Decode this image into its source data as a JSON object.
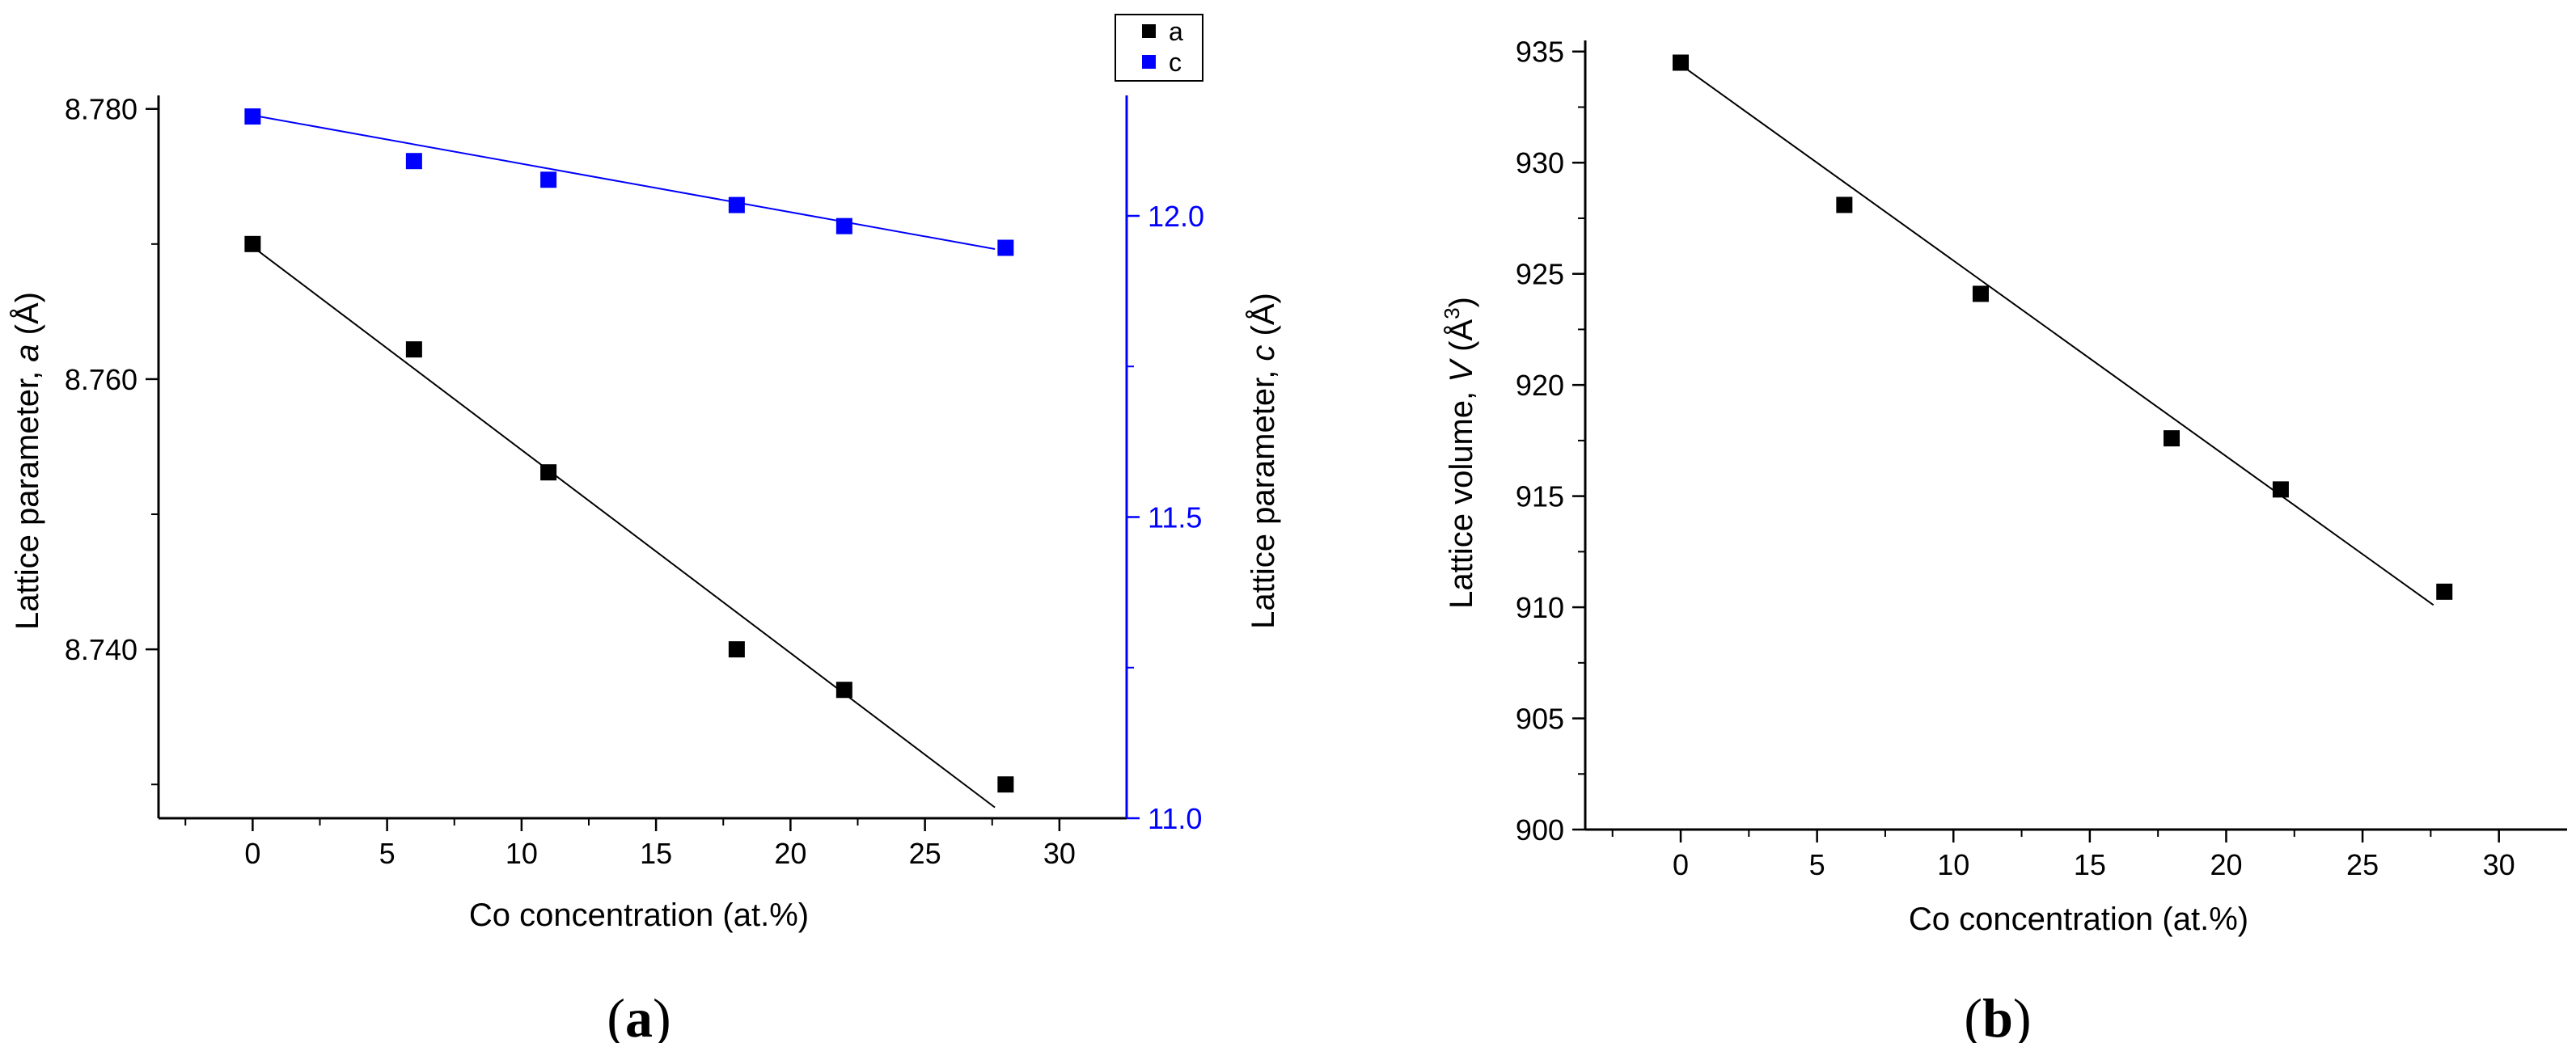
{
  "colors": {
    "black": "#000000",
    "blue": "#0000ff"
  },
  "chart_data": [
    {
      "panel": "a",
      "panel_label": {
        "open": "(",
        "letter": "a",
        "close": ")"
      },
      "type": "scatter",
      "xlabel": "Co concentration (at.%)",
      "xlim": [
        -3.5,
        32.5
      ],
      "x_ticks": [
        "0",
        "5",
        "10",
        "15",
        "20",
        "25",
        "30"
      ],
      "ylabel_left": {
        "text": "Lattice parameter, ",
        "var": "a",
        "unit": " (Å)"
      },
      "ylim_left": [
        8.7275,
        8.781
      ],
      "y_ticks_left": [
        "8.740",
        "8.760",
        "8.780"
      ],
      "ylabel_right": {
        "text": "Lattice parameter, ",
        "var": "c",
        "unit": " (Å)"
      },
      "ylim_right": [
        11.0,
        12.2
      ],
      "y_ticks_right": [
        "11.0",
        "11.5",
        "12.0"
      ],
      "legend": {
        "position": "top-right",
        "entries": [
          "a",
          "c"
        ]
      },
      "series": [
        {
          "name": "a",
          "axis": "left",
          "color": "#000000",
          "x": [
            0,
            6,
            11,
            18,
            22,
            28
          ],
          "y": [
            8.77,
            8.7622,
            8.7531,
            8.74,
            8.737,
            8.73
          ],
          "fit": {
            "x": [
              0,
              27.6
            ],
            "y": [
              8.7698,
              8.7283
            ]
          }
        },
        {
          "name": "c",
          "axis": "right",
          "color": "#0000ff",
          "x": [
            0,
            6,
            11,
            18,
            22,
            28
          ],
          "y": [
            12.165,
            12.091,
            12.06,
            12.018,
            11.983,
            11.947
          ],
          "fit": {
            "x": [
              0,
              27.6
            ],
            "y": [
              12.167,
              11.945
            ]
          }
        }
      ]
    },
    {
      "panel": "b",
      "panel_label": {
        "open": "(",
        "letter": "b",
        "close": ")"
      },
      "type": "scatter",
      "xlabel": "Co concentration (at.%)",
      "xlim": [
        -3.5,
        32.5
      ],
      "x_ticks": [
        "0",
        "5",
        "10",
        "15",
        "20",
        "25",
        "30"
      ],
      "ylabel": {
        "text": "Lattice volume, ",
        "var": "V",
        "unit": " (Å",
        "sup": "3",
        "close": ")"
      },
      "ylim": [
        900,
        935.5
      ],
      "y_ticks": [
        "900",
        "905",
        "910",
        "915",
        "920",
        "925",
        "930",
        "935"
      ],
      "series": [
        {
          "name": "V",
          "color": "#000000",
          "x": [
            0,
            6,
            11,
            18,
            22,
            28
          ],
          "y": [
            934.5,
            928.1,
            924.1,
            917.6,
            915.3,
            910.7
          ],
          "fit": {
            "x": [
              0,
              27.6
            ],
            "y": [
              934.4,
              910.1
            ]
          }
        }
      ]
    }
  ]
}
